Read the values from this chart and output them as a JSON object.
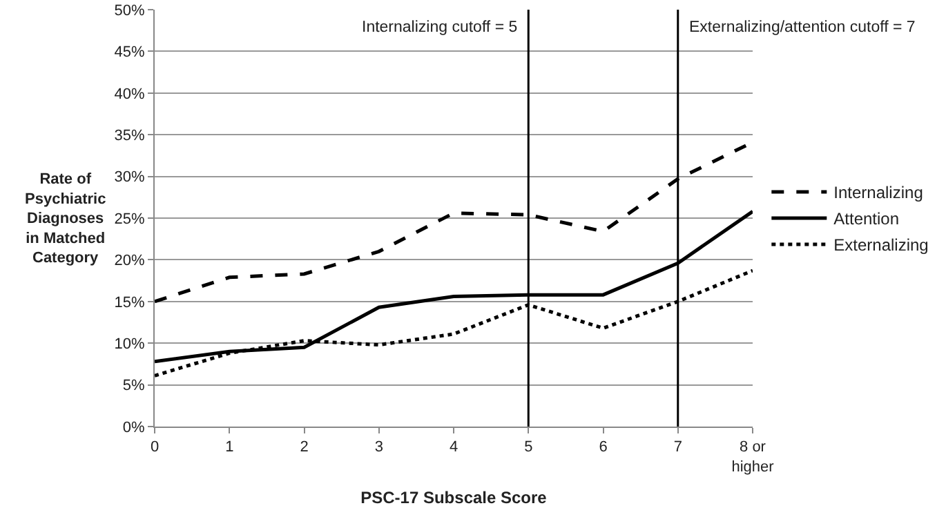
{
  "chart_data": {
    "type": "line",
    "xlabel": "PSC-17 Subscale Score",
    "ylabel": "Rate of Psychiatric Diagnoses in Matched Category",
    "x": [
      0,
      1,
      2,
      3,
      4,
      5,
      6,
      7,
      8
    ],
    "xlim": [
      0,
      8
    ],
    "xticks": [
      0,
      1,
      2,
      3,
      4,
      5,
      6,
      7,
      {
        "value": 8,
        "label": "8 or higher"
      }
    ],
    "ylim": [
      0,
      50
    ],
    "yticks": [
      {
        "value": 0,
        "label": "0%"
      },
      {
        "value": 5,
        "label": "5%"
      },
      {
        "value": 10,
        "label": "10%"
      },
      {
        "value": 15,
        "label": "15%"
      },
      {
        "value": 20,
        "label": "20%"
      },
      {
        "value": 25,
        "label": "25%"
      },
      {
        "value": 30,
        "label": "30%"
      },
      {
        "value": 35,
        "label": "35%"
      },
      {
        "value": 40,
        "label": "40%"
      },
      {
        "value": 45,
        "label": "45%"
      },
      {
        "value": 50,
        "label": "50%"
      }
    ],
    "grid": "y",
    "legend": "right",
    "marker": "none",
    "series": [
      {
        "name": "Internalizing",
        "color": "#000000",
        "line_style": "dashed",
        "values": [
          15,
          17.9,
          18.3,
          21,
          25.6,
          25.4,
          23.4,
          29.7,
          34.1
        ]
      },
      {
        "name": "Attention",
        "color": "#000000",
        "line_style": "solid",
        "values": [
          7.8,
          9,
          9.5,
          14.3,
          15.6,
          15.8,
          15.8,
          19.6,
          25.8
        ]
      },
      {
        "name": "Externalizing",
        "color": "#000000",
        "line_style": "dotted",
        "values": [
          6.1,
          8.8,
          10.3,
          9.8,
          11.1,
          14.6,
          11.8,
          15,
          18.7
        ]
      }
    ],
    "ref_lines": [
      {
        "axis": "x",
        "value": 5,
        "label": "Internalizing cutoff = 5",
        "color": "#000000"
      },
      {
        "axis": "x",
        "value": 7,
        "label": "Externalizing/attention cutoff = 7",
        "color": "#000000"
      }
    ]
  }
}
